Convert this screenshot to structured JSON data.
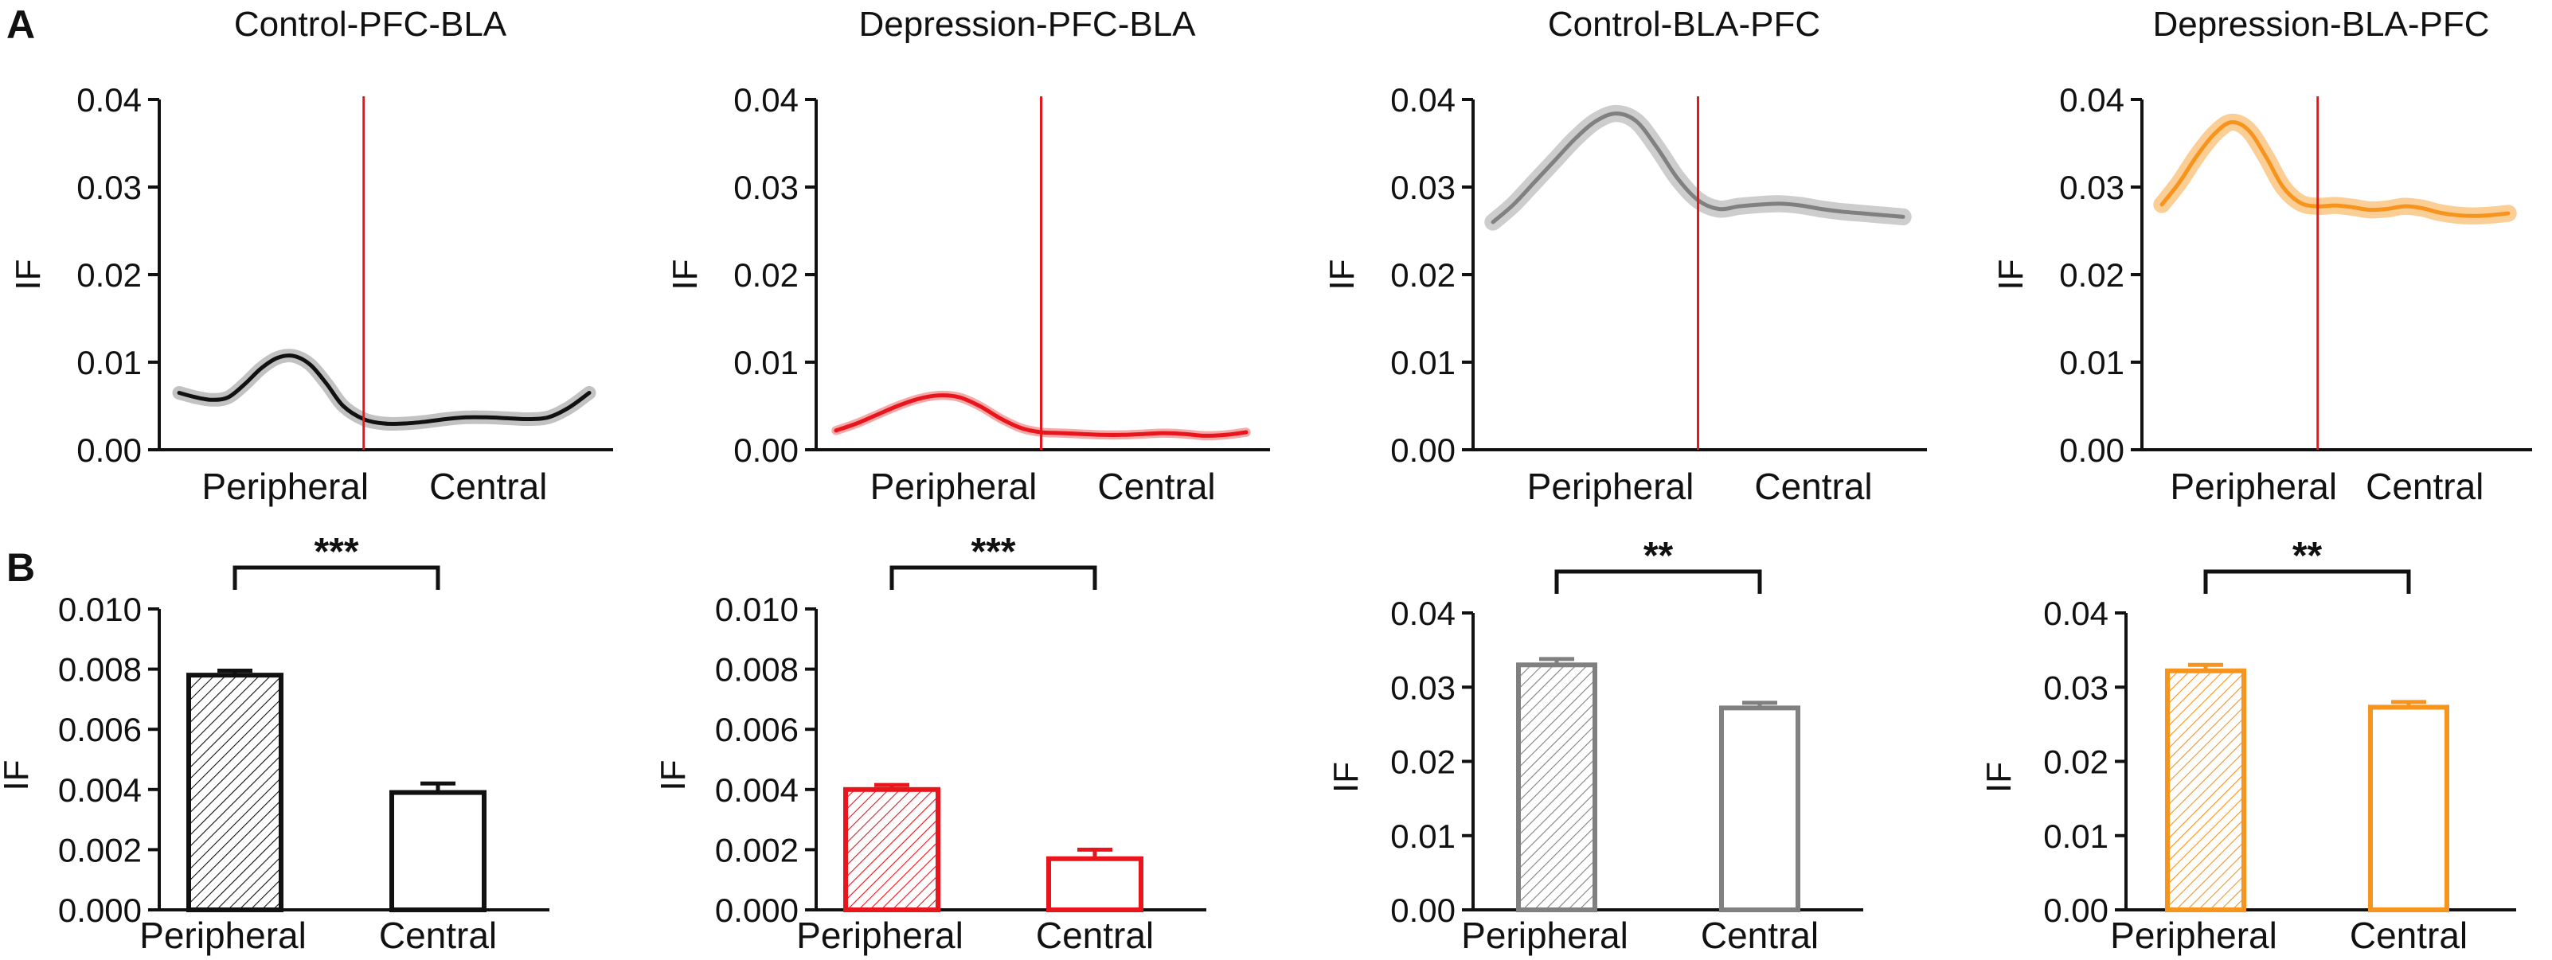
{
  "panel_labels": [
    "A",
    "B"
  ],
  "chart_data": [
    {
      "type": "line",
      "title": "Control-PFC-BLA",
      "ylabel": "IF",
      "categories": [
        "Peripheral",
        "Central"
      ],
      "yticks": [
        "0.00",
        "0.01",
        "0.02",
        "0.03",
        "0.04"
      ],
      "ylim": [
        0,
        0.04
      ],
      "x": [
        0,
        0.04,
        0.08,
        0.12,
        0.16,
        0.2,
        0.24,
        0.28,
        0.32,
        0.36,
        0.4,
        0.45,
        0.5,
        0.55,
        0.6,
        0.65,
        0.7,
        0.75,
        0.8,
        0.85,
        0.9,
        0.95,
        1.0
      ],
      "values": [
        0.0065,
        0.006,
        0.0057,
        0.006,
        0.0075,
        0.0093,
        0.0105,
        0.0107,
        0.0097,
        0.0075,
        0.005,
        0.0035,
        0.003,
        0.003,
        0.0032,
        0.0035,
        0.0037,
        0.0037,
        0.0036,
        0.0035,
        0.0037,
        0.0048,
        0.0065
      ],
      "band": 0.0005,
      "divider_x": 0.45,
      "color": "#111111",
      "band_color": "#bbbbbb"
    },
    {
      "type": "line",
      "title": "Depression-PFC-BLA",
      "ylabel": "IF",
      "categories": [
        "Peripheral",
        "Central"
      ],
      "yticks": [
        "0.00",
        "0.01",
        "0.02",
        "0.03",
        "0.04"
      ],
      "ylim": [
        0,
        0.04
      ],
      "x": [
        0,
        0.05,
        0.1,
        0.15,
        0.2,
        0.25,
        0.3,
        0.35,
        0.4,
        0.45,
        0.5,
        0.55,
        0.6,
        0.65,
        0.7,
        0.75,
        0.8,
        0.85,
        0.9,
        0.95,
        1.0
      ],
      "values": [
        0.0022,
        0.003,
        0.004,
        0.005,
        0.0058,
        0.0062,
        0.006,
        0.005,
        0.0036,
        0.0025,
        0.002,
        0.0019,
        0.0018,
        0.0017,
        0.0017,
        0.0018,
        0.0019,
        0.0018,
        0.0016,
        0.0017,
        0.002
      ],
      "band": 0.00025,
      "divider_x": 0.5,
      "color": "#e8161c",
      "band_color": "#f5a0a0"
    },
    {
      "type": "line",
      "title": "Control-BLA-PFC",
      "ylabel": "IF",
      "categories": [
        "Peripheral",
        "Central"
      ],
      "yticks": [
        "0.00",
        "0.01",
        "0.02",
        "0.03",
        "0.04"
      ],
      "ylim": [
        0,
        0.04
      ],
      "x": [
        0,
        0.05,
        0.1,
        0.15,
        0.2,
        0.25,
        0.3,
        0.35,
        0.4,
        0.45,
        0.5,
        0.55,
        0.6,
        0.65,
        0.7,
        0.75,
        0.8,
        0.85,
        0.9,
        0.95,
        1.0
      ],
      "values": [
        0.026,
        0.028,
        0.0305,
        0.033,
        0.0355,
        0.0375,
        0.0384,
        0.0375,
        0.0345,
        0.031,
        0.0285,
        0.0275,
        0.0278,
        0.028,
        0.0281,
        0.0279,
        0.0275,
        0.0272,
        0.027,
        0.0268,
        0.0266
      ],
      "band": 0.0007,
      "divider_x": 0.5,
      "color": "#808080",
      "band_color": "#c8c8c8"
    },
    {
      "type": "line",
      "title": "Depression-BLA-PFC",
      "ylabel": "IF",
      "categories": [
        "Peripheral",
        "Central"
      ],
      "yticks": [
        "0.00",
        "0.01",
        "0.02",
        "0.03",
        "0.04"
      ],
      "ylim": [
        0,
        0.04
      ],
      "x": [
        0,
        0.05,
        0.1,
        0.15,
        0.2,
        0.25,
        0.3,
        0.35,
        0.4,
        0.45,
        0.5,
        0.55,
        0.6,
        0.65,
        0.7,
        0.75,
        0.8,
        0.85,
        0.9,
        0.95,
        1.0
      ],
      "values": [
        0.028,
        0.0305,
        0.0335,
        0.036,
        0.0374,
        0.0365,
        0.0335,
        0.03,
        0.0282,
        0.0278,
        0.0279,
        0.0277,
        0.0274,
        0.0275,
        0.0278,
        0.0276,
        0.0271,
        0.0268,
        0.0267,
        0.0268,
        0.027
      ],
      "band": 0.0007,
      "divider_x": 0.45,
      "color": "#f7941d",
      "band_color": "#fbc98a"
    },
    {
      "type": "bar",
      "ylabel": "IF",
      "categories": [
        "Peripheral",
        "Central"
      ],
      "values": [
        0.0078,
        0.0039
      ],
      "errors": [
        0.00015,
        0.0003
      ],
      "yticks": [
        "0.000",
        "0.002",
        "0.004",
        "0.006",
        "0.008",
        "0.010"
      ],
      "ylim": [
        0,
        0.01
      ],
      "significance": "***",
      "color": "#111111"
    },
    {
      "type": "bar",
      "ylabel": "IF",
      "categories": [
        "Peripheral",
        "Central"
      ],
      "values": [
        0.004,
        0.0017
      ],
      "errors": [
        0.00015,
        0.0003
      ],
      "yticks": [
        "0.000",
        "0.002",
        "0.004",
        "0.006",
        "0.008",
        "0.010"
      ],
      "ylim": [
        0,
        0.01
      ],
      "significance": "***",
      "color": "#e8161c"
    },
    {
      "type": "bar",
      "ylabel": "IF",
      "categories": [
        "Peripheral",
        "Central"
      ],
      "values": [
        0.033,
        0.0272
      ],
      "errors": [
        0.0008,
        0.0007
      ],
      "yticks": [
        "0.00",
        "0.01",
        "0.02",
        "0.03",
        "0.04"
      ],
      "ylim": [
        0,
        0.04
      ],
      "significance": "**",
      "color": "#808080"
    },
    {
      "type": "bar",
      "ylabel": "IF",
      "categories": [
        "Peripheral",
        "Central"
      ],
      "values": [
        0.0322,
        0.0273
      ],
      "errors": [
        0.0008,
        0.0007
      ],
      "yticks": [
        "0.00",
        "0.01",
        "0.02",
        "0.03",
        "0.04"
      ],
      "ylim": [
        0,
        0.04
      ],
      "significance": "**",
      "color": "#f7941d"
    }
  ]
}
